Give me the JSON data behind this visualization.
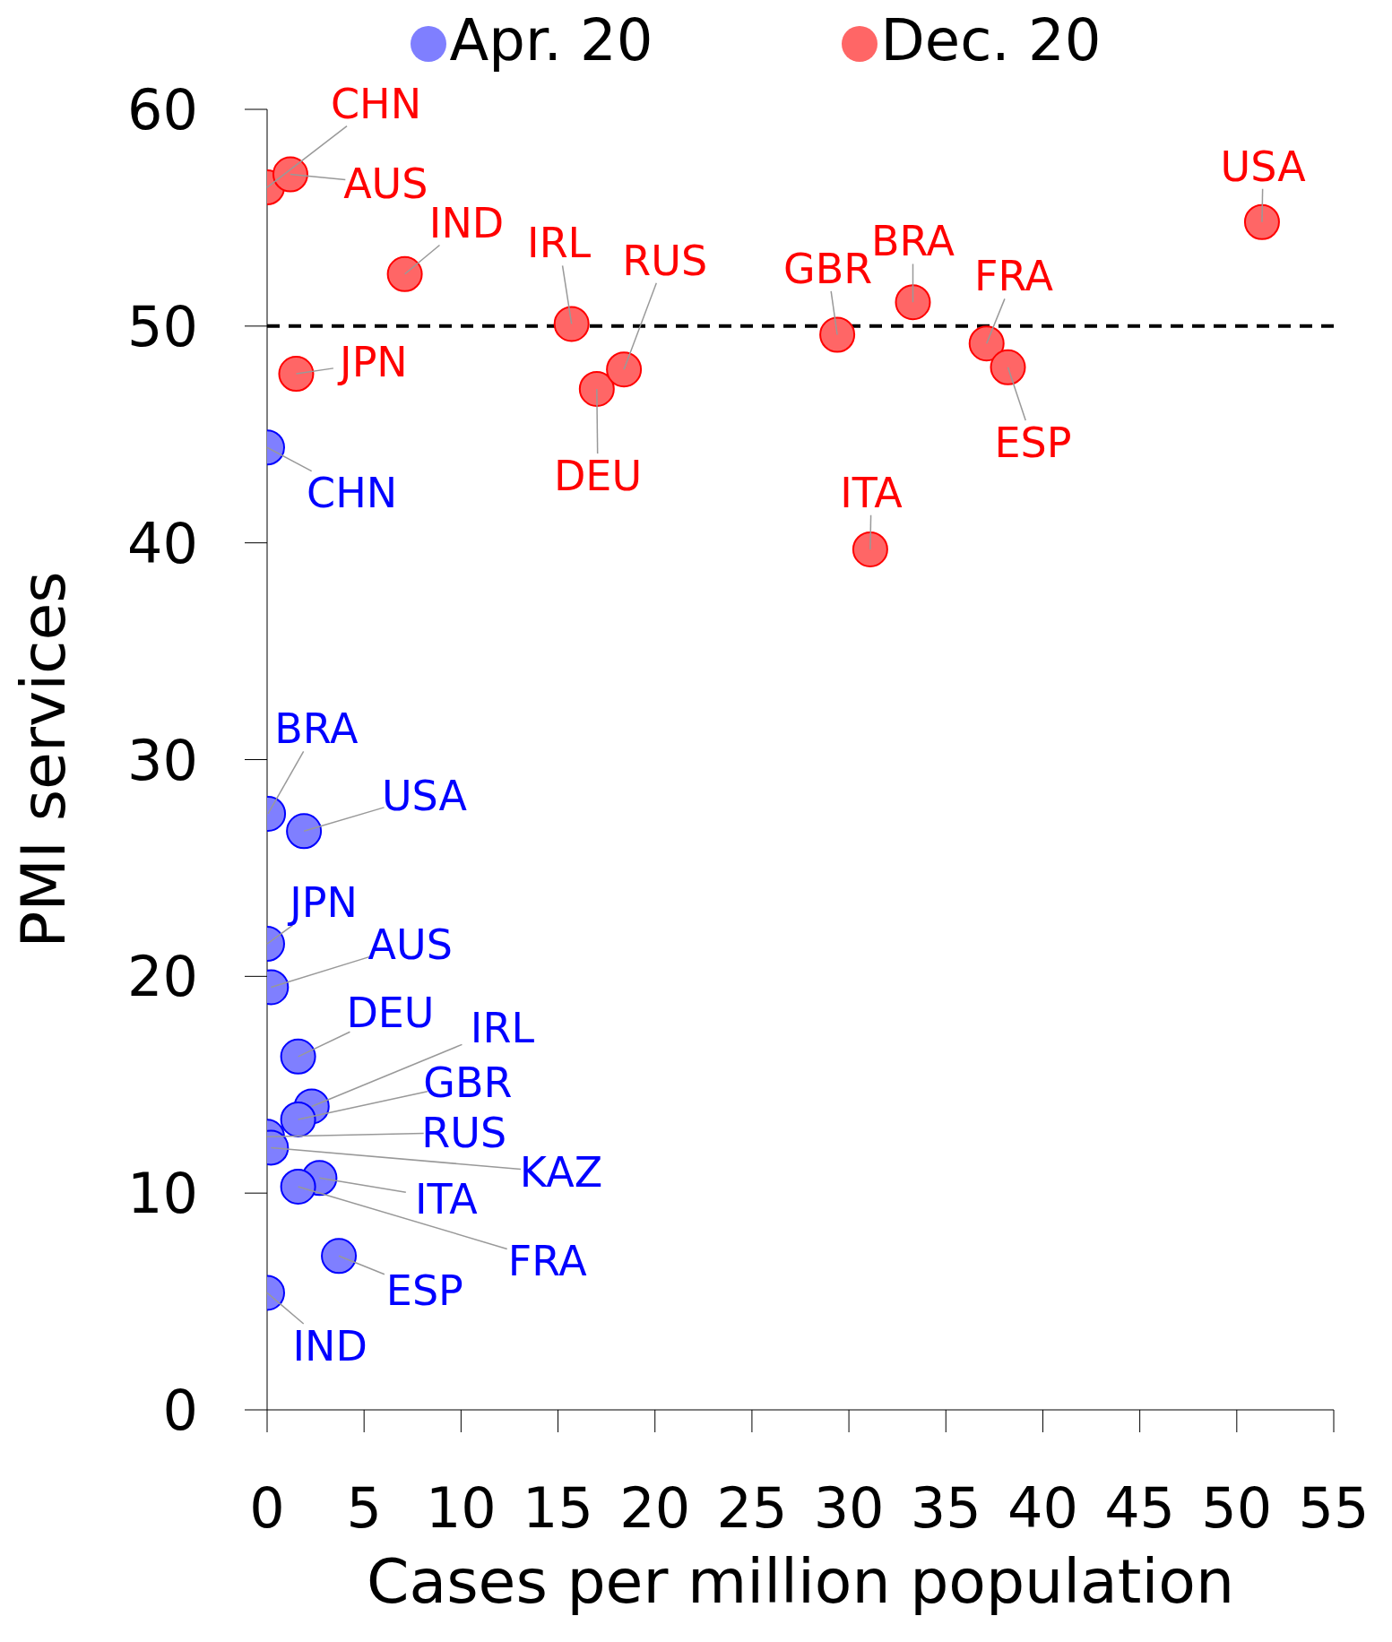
{
  "chart_data": {
    "type": "scatter",
    "xlabel": "Cases per million population",
    "ylabel": "PMI services",
    "xlim": [
      0,
      55
    ],
    "xticks": [
      0,
      5,
      10,
      15,
      20,
      25,
      30,
      35,
      40,
      45,
      50,
      55
    ],
    "ylim": [
      0,
      60
    ],
    "yticks": [
      0,
      10,
      20,
      30,
      40,
      50,
      60
    ],
    "legend": "top",
    "marker": "circle",
    "grid": false,
    "ref_lines": [
      {
        "axis": "y",
        "value": 50,
        "color": "#000000",
        "line_style": "dashed"
      }
    ],
    "series": [
      {
        "name": "Apr. 20",
        "color": "#7f7fff",
        "x": [
          0,
          0.05,
          1.9,
          0,
          0.2,
          1.6,
          2.3,
          1.6,
          0,
          0.2,
          2.7,
          1.6,
          3.7,
          0
        ],
        "values": [
          44.4,
          27.5,
          26.7,
          21.5,
          19.5,
          16.3,
          14.0,
          13.4,
          12.6,
          12.1,
          10.7,
          10.3,
          7.1,
          5.4
        ]
      },
      {
        "name": "Dec. 20",
        "color": "#ff6666",
        "x": [
          0,
          1.2,
          7.1,
          15.7,
          17.0,
          18.4,
          29.4,
          33.3,
          37.1,
          38.2,
          31.1,
          51.3,
          1.5
        ],
        "values": [
          56.4,
          57.0,
          52.4,
          50.1,
          47.1,
          48.0,
          49.6,
          51.1,
          49.2,
          48.1,
          39.7,
          54.8,
          47.8
        ]
      }
    ],
    "annotations": [
      {
        "text": "CHN",
        "x": 0,
        "y": 44.4
      },
      {
        "text": "BRA",
        "x": 0.05,
        "y": 27.5
      },
      {
        "text": "USA",
        "x": 1.9,
        "y": 26.7
      },
      {
        "text": "JPN",
        "x": 0,
        "y": 21.5
      },
      {
        "text": "AUS",
        "x": 0.2,
        "y": 19.5
      },
      {
        "text": "DEU",
        "x": 1.6,
        "y": 16.3
      },
      {
        "text": "IRL",
        "x": 2.3,
        "y": 14.0
      },
      {
        "text": "GBR",
        "x": 1.6,
        "y": 13.4
      },
      {
        "text": "RUS",
        "x": 0,
        "y": 12.6
      },
      {
        "text": "KAZ",
        "x": 0.2,
        "y": 12.1
      },
      {
        "text": "ITA",
        "x": 2.7,
        "y": 10.7
      },
      {
        "text": "FRA",
        "x": 1.6,
        "y": 10.3
      },
      {
        "text": "ESP",
        "x": 3.7,
        "y": 7.1
      },
      {
        "text": "IND",
        "x": 0,
        "y": 5.4
      },
      {
        "text": "CHN",
        "x": 0,
        "y": 56.4
      },
      {
        "text": "AUS",
        "x": 1.2,
        "y": 57.0
      },
      {
        "text": "IND",
        "x": 7.1,
        "y": 52.4
      },
      {
        "text": "IRL",
        "x": 15.7,
        "y": 50.1
      },
      {
        "text": "DEU",
        "x": 17.0,
        "y": 47.1
      },
      {
        "text": "RUS",
        "x": 18.4,
        "y": 48.0
      },
      {
        "text": "GBR",
        "x": 29.4,
        "y": 49.6
      },
      {
        "text": "BRA",
        "x": 33.3,
        "y": 51.1
      },
      {
        "text": "FRA",
        "x": 37.1,
        "y": 49.2
      },
      {
        "text": "ESP",
        "x": 38.2,
        "y": 48.1
      },
      {
        "text": "ITA",
        "x": 31.1,
        "y": 39.7
      },
      {
        "text": "USA",
        "x": 51.3,
        "y": 54.8
      },
      {
        "text": "JPN",
        "x": 1.5,
        "y": 47.8
      }
    ]
  }
}
